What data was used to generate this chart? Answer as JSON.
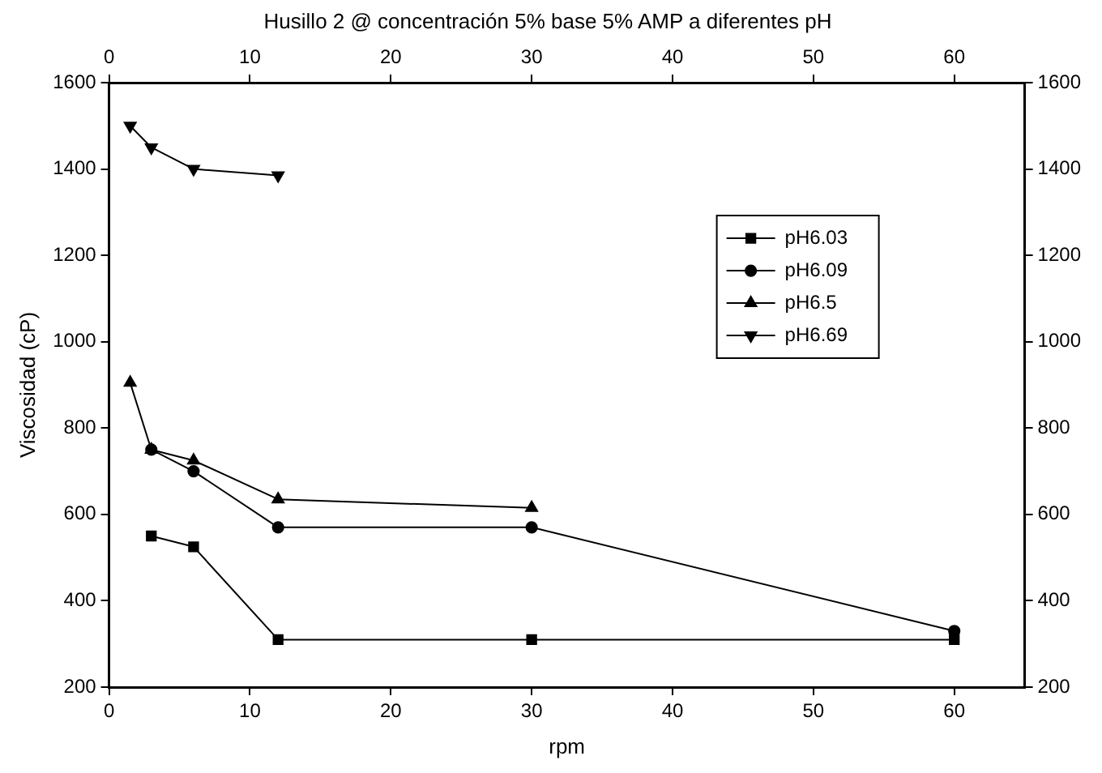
{
  "chart_data": {
    "type": "line",
    "title": "Husillo 2 @ concentración 5% base 5% AMP a diferentes pH",
    "xlabel": "rpm",
    "ylabel": "Viscosidad (cP)",
    "xlim": [
      0,
      65
    ],
    "xticks": [
      0,
      10,
      20,
      30,
      40,
      50,
      60
    ],
    "x2lim": [
      0,
      65
    ],
    "x2ticks": [
      0,
      10,
      20,
      30,
      40,
      50,
      60
    ],
    "ylim": [
      200,
      1600
    ],
    "yticks": [
      200,
      400,
      600,
      800,
      1000,
      1200,
      1400,
      1600
    ],
    "y2lim": [
      200,
      1600
    ],
    "y2ticks": [
      200,
      400,
      600,
      800,
      1000,
      1200,
      1400,
      1600
    ],
    "grid": false,
    "legend": "right",
    "line_style": "solid",
    "series": [
      {
        "name": "pH6.03",
        "color": "#000000",
        "marker": "square",
        "x": [
          3,
          6,
          12,
          30,
          60
        ],
        "values": [
          550,
          525,
          310,
          310,
          310
        ]
      },
      {
        "name": "pH6.09",
        "color": "#000000",
        "marker": "circle",
        "x": [
          3,
          6,
          12,
          30,
          60
        ],
        "values": [
          750,
          700,
          570,
          570,
          330
        ]
      },
      {
        "name": "pH6.5",
        "color": "#000000",
        "marker": "triangle",
        "x": [
          1.5,
          3,
          6,
          12,
          30
        ],
        "values": [
          905,
          750,
          725,
          635,
          615
        ]
      },
      {
        "name": "pH6.69",
        "color": "#000000",
        "marker": "triangle-down",
        "x": [
          1.5,
          3,
          6,
          12
        ],
        "values": [
          1500,
          1450,
          1400,
          1385
        ]
      }
    ]
  }
}
